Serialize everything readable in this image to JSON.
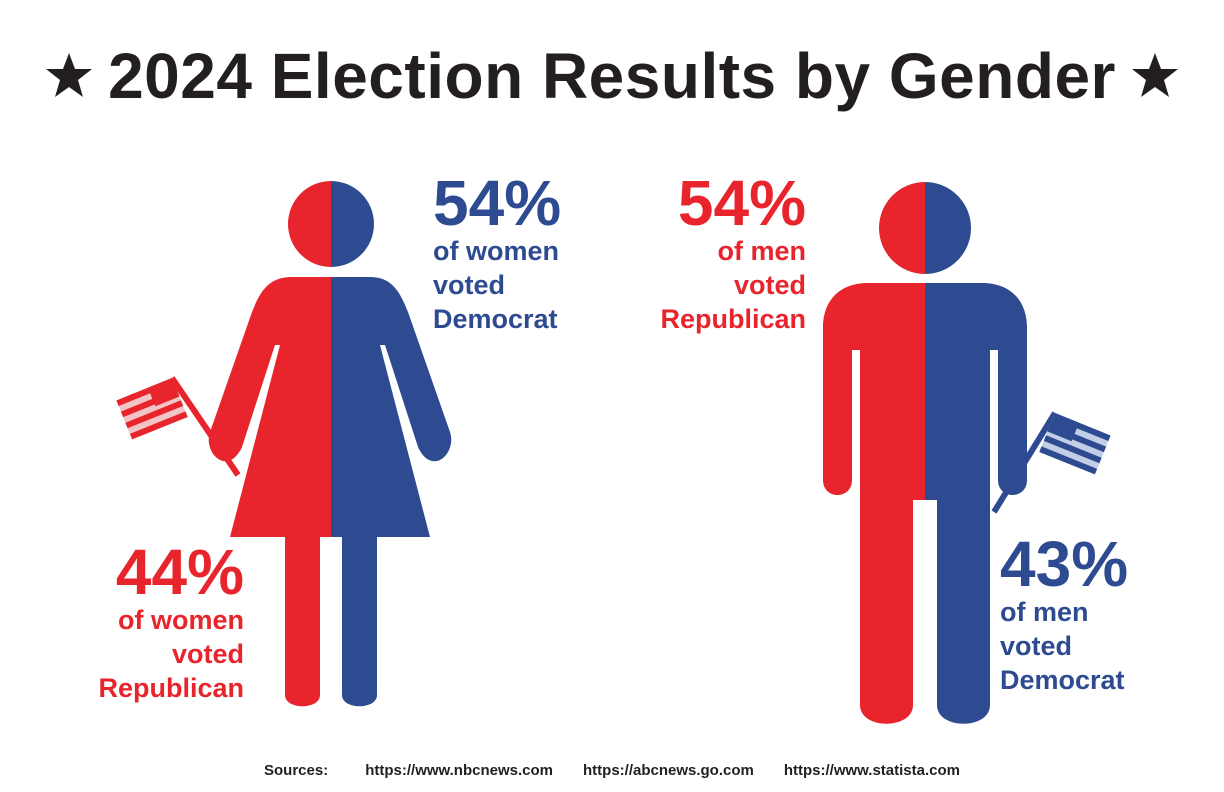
{
  "title": "2024 Election Results by Gender",
  "icons": {
    "title_left": "star-icon",
    "title_right": "star-icon",
    "woman": "woman-figure-icon",
    "man": "man-figure-icon",
    "flag": "us-flag-icon"
  },
  "colors": {
    "republican": "#e8242c",
    "democrat": "#2e4b91",
    "text": "#231f20"
  },
  "women": {
    "democrat": {
      "percent": "54%",
      "lines": [
        "of women",
        "voted",
        "Democrat"
      ]
    },
    "republican": {
      "percent": "44%",
      "lines": [
        "of women",
        "voted",
        "Republican"
      ]
    }
  },
  "men": {
    "republican": {
      "percent": "54%",
      "lines": [
        "of men",
        "voted",
        "Republican"
      ]
    },
    "democrat": {
      "percent": "43%",
      "lines": [
        "of men",
        "voted",
        "Democrat"
      ]
    }
  },
  "sources": {
    "label": "Sources:",
    "items": [
      "https://www.nbcnews.com",
      "https://abcnews.go.com",
      "https://www.statista.com"
    ]
  }
}
